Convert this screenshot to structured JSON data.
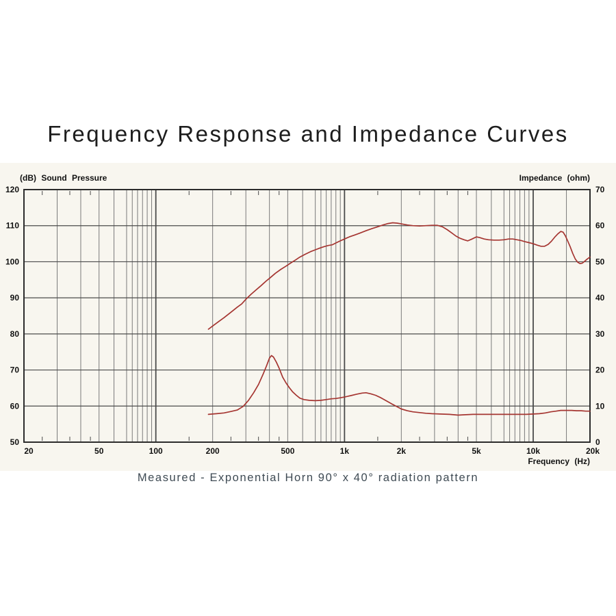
{
  "page": {
    "title": "Frequency Response and Impedance Curves",
    "caption": "Measured - Exponential Horn 90° x 40° radiation pattern"
  },
  "colors": {
    "curve": "#a53531",
    "panel_background": "#f8f6ef",
    "grid_minor": "#7a7a7a",
    "grid_major": "#4a4a4a",
    "plot_border": "#2b2b2b",
    "title_text": "#1d1d1d",
    "caption_text": "#3e4a53",
    "tick_text": "#111111"
  },
  "chart_data": {
    "type": "line",
    "title": "Frequency Response and Impedance Curves",
    "grid": true,
    "legend": "none",
    "x_axis": {
      "title": "Frequency (Hz)",
      "scale": "log",
      "range": [
        20,
        20000
      ],
      "ticks": [
        {
          "f": 20,
          "label": "20"
        },
        {
          "f": 50,
          "label": "50"
        },
        {
          "f": 100,
          "label": "100"
        },
        {
          "f": 200,
          "label": "200"
        },
        {
          "f": 500,
          "label": "500"
        },
        {
          "f": 1000,
          "label": "1k"
        },
        {
          "f": 2000,
          "label": "2k"
        },
        {
          "f": 5000,
          "label": "5k"
        },
        {
          "f": 10000,
          "label": "10k"
        },
        {
          "f": 20000,
          "label": "20k"
        }
      ],
      "decade_gridlines": [
        100,
        1000,
        10000
      ],
      "minor_gridlines": [
        30,
        40,
        50,
        60,
        70,
        75,
        80,
        85,
        90,
        95,
        200,
        300,
        400,
        500,
        600,
        700,
        750,
        800,
        850,
        900,
        950,
        2000,
        3000,
        4000,
        5000,
        6000,
        7000,
        7500,
        8000,
        8500,
        9000,
        9500,
        15000
      ],
      "edge_ticks": [
        25,
        35,
        45,
        150,
        250,
        350,
        450,
        1500,
        2500,
        3500,
        4500
      ]
    },
    "left_axis": {
      "title": "(dB) Sound Pressure",
      "range": [
        50,
        120
      ],
      "ticks": [
        120,
        110,
        100,
        90,
        80,
        70,
        60,
        50
      ]
    },
    "right_axis": {
      "title": "Impedance (ohm)",
      "range": [
        0,
        70
      ],
      "ticks": [
        70,
        60,
        50,
        40,
        30,
        20,
        10,
        0
      ]
    },
    "series": [
      {
        "name": "Sound Pressure Level (dB SPL)",
        "axis": "left",
        "color": "#a53531",
        "points": [
          [
            190,
            81.3
          ],
          [
            200,
            82.2
          ],
          [
            215,
            83.4
          ],
          [
            230,
            84.5
          ],
          [
            250,
            86.0
          ],
          [
            270,
            87.4
          ],
          [
            285,
            88.3
          ],
          [
            300,
            89.6
          ],
          [
            320,
            91.0
          ],
          [
            340,
            92.2
          ],
          [
            360,
            93.3
          ],
          [
            385,
            94.7
          ],
          [
            400,
            95.4
          ],
          [
            430,
            96.8
          ],
          [
            460,
            97.9
          ],
          [
            490,
            98.8
          ],
          [
            520,
            99.7
          ],
          [
            550,
            100.5
          ],
          [
            580,
            101.3
          ],
          [
            620,
            102.1
          ],
          [
            660,
            102.8
          ],
          [
            700,
            103.3
          ],
          [
            740,
            103.8
          ],
          [
            780,
            104.2
          ],
          [
            820,
            104.5
          ],
          [
            860,
            104.7
          ],
          [
            900,
            105.2
          ],
          [
            950,
            105.8
          ],
          [
            1000,
            106.3
          ],
          [
            1060,
            106.9
          ],
          [
            1130,
            107.4
          ],
          [
            1200,
            107.9
          ],
          [
            1300,
            108.6
          ],
          [
            1400,
            109.2
          ],
          [
            1500,
            109.7
          ],
          [
            1600,
            110.2
          ],
          [
            1700,
            110.6
          ],
          [
            1800,
            110.8
          ],
          [
            1900,
            110.7
          ],
          [
            2000,
            110.5
          ],
          [
            2150,
            110.2
          ],
          [
            2300,
            110.0
          ],
          [
            2500,
            109.9
          ],
          [
            2700,
            110.0
          ],
          [
            2900,
            110.1
          ],
          [
            3100,
            110.1
          ],
          [
            3300,
            109.7
          ],
          [
            3500,
            108.9
          ],
          [
            3700,
            108.0
          ],
          [
            3900,
            107.1
          ],
          [
            4100,
            106.5
          ],
          [
            4300,
            106.1
          ],
          [
            4500,
            105.8
          ],
          [
            4700,
            106.2
          ],
          [
            5000,
            106.9
          ],
          [
            5200,
            106.7
          ],
          [
            5500,
            106.3
          ],
          [
            5800,
            106.1
          ],
          [
            6200,
            106.0
          ],
          [
            6600,
            106.0
          ],
          [
            7000,
            106.1
          ],
          [
            7400,
            106.3
          ],
          [
            7800,
            106.3
          ],
          [
            8200,
            106.1
          ],
          [
            8600,
            105.9
          ],
          [
            9000,
            105.6
          ],
          [
            9500,
            105.3
          ],
          [
            10000,
            105.0
          ],
          [
            10500,
            104.6
          ],
          [
            11000,
            104.3
          ],
          [
            11500,
            104.3
          ],
          [
            12000,
            104.8
          ],
          [
            12500,
            105.7
          ],
          [
            13000,
            106.8
          ],
          [
            13500,
            107.7
          ],
          [
            14000,
            108.4
          ],
          [
            14400,
            108.2
          ],
          [
            14800,
            107.2
          ],
          [
            15200,
            105.9
          ],
          [
            15700,
            104.2
          ],
          [
            16200,
            102.3
          ],
          [
            16700,
            100.8
          ],
          [
            17200,
            99.9
          ],
          [
            17700,
            99.5
          ],
          [
            18200,
            99.6
          ],
          [
            18700,
            100.1
          ],
          [
            19300,
            100.7
          ],
          [
            20000,
            101.3
          ]
        ]
      },
      {
        "name": "Impedance (ohm)",
        "axis": "right",
        "color": "#a53531",
        "points": [
          [
            190,
            7.7
          ],
          [
            210,
            7.9
          ],
          [
            230,
            8.1
          ],
          [
            250,
            8.5
          ],
          [
            270,
            8.9
          ],
          [
            290,
            9.9
          ],
          [
            310,
            11.6
          ],
          [
            330,
            13.7
          ],
          [
            350,
            16.0
          ],
          [
            370,
            18.8
          ],
          [
            385,
            21.0
          ],
          [
            400,
            23.3
          ],
          [
            410,
            24.0
          ],
          [
            420,
            23.6
          ],
          [
            435,
            22.2
          ],
          [
            450,
            20.5
          ],
          [
            470,
            18.0
          ],
          [
            490,
            16.4
          ],
          [
            510,
            15.1
          ],
          [
            530,
            14.0
          ],
          [
            555,
            13.0
          ],
          [
            580,
            12.2
          ],
          [
            610,
            11.8
          ],
          [
            650,
            11.6
          ],
          [
            700,
            11.5
          ],
          [
            750,
            11.6
          ],
          [
            800,
            11.8
          ],
          [
            850,
            12.0
          ],
          [
            900,
            12.1
          ],
          [
            950,
            12.3
          ],
          [
            1000,
            12.5
          ],
          [
            1080,
            12.9
          ],
          [
            1160,
            13.3
          ],
          [
            1240,
            13.6
          ],
          [
            1300,
            13.7
          ],
          [
            1380,
            13.4
          ],
          [
            1460,
            13.0
          ],
          [
            1560,
            12.3
          ],
          [
            1660,
            11.5
          ],
          [
            1780,
            10.6
          ],
          [
            1900,
            9.8
          ],
          [
            2000,
            9.2
          ],
          [
            2150,
            8.7
          ],
          [
            2300,
            8.4
          ],
          [
            2500,
            8.2
          ],
          [
            2700,
            8.0
          ],
          [
            2900,
            7.9
          ],
          [
            3200,
            7.8
          ],
          [
            3600,
            7.7
          ],
          [
            4000,
            7.5
          ],
          [
            4400,
            7.6
          ],
          [
            4800,
            7.7
          ],
          [
            5400,
            7.7
          ],
          [
            6000,
            7.7
          ],
          [
            6800,
            7.7
          ],
          [
            7600,
            7.7
          ],
          [
            8400,
            7.7
          ],
          [
            9200,
            7.7
          ],
          [
            10000,
            7.8
          ],
          [
            10800,
            7.9
          ],
          [
            11600,
            8.1
          ],
          [
            12400,
            8.4
          ],
          [
            13200,
            8.6
          ],
          [
            14000,
            8.8
          ],
          [
            15000,
            8.8
          ],
          [
            16000,
            8.8
          ],
          [
            17000,
            8.7
          ],
          [
            18000,
            8.7
          ],
          [
            19000,
            8.6
          ],
          [
            20000,
            8.6
          ]
        ]
      }
    ]
  }
}
